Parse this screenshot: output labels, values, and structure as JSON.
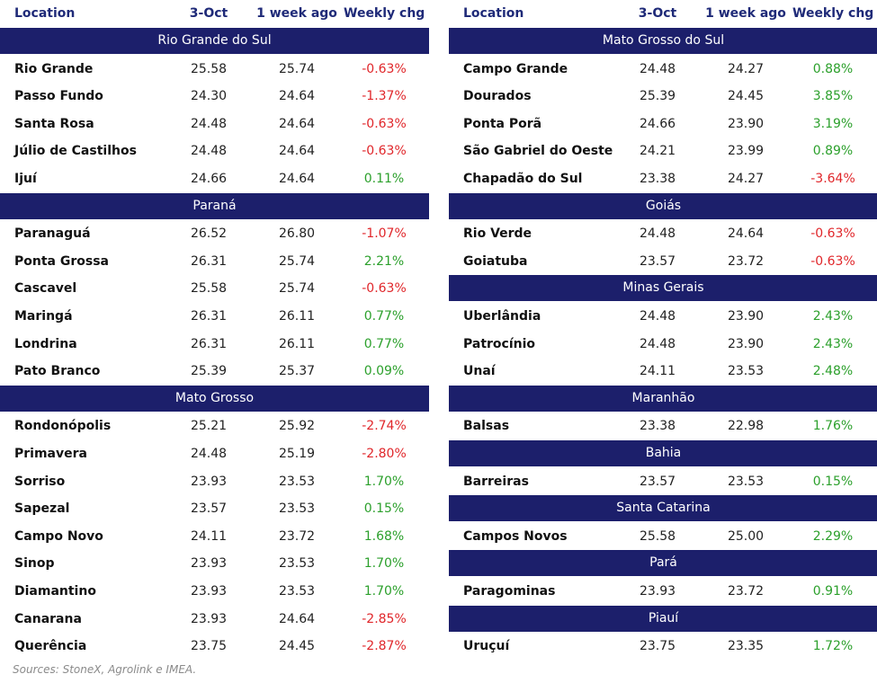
{
  "tables": [
    {
      "columns": [
        "Location",
        "3-Oct",
        "1 week ago",
        "Weekly chg"
      ],
      "groups": [
        {
          "name": "Rio Grande do Sul",
          "rows": [
            [
              "Rio Grande",
              "25.58",
              "25.74",
              "-0.63%"
            ],
            [
              "Passo Fundo",
              "24.30",
              "24.64",
              "-1.37%"
            ],
            [
              "Santa Rosa",
              "24.48",
              "24.64",
              "-0.63%"
            ],
            [
              "Júlio de Castilhos",
              "24.48",
              "24.64",
              "-0.63%"
            ],
            [
              "Ijuí",
              "24.66",
              "24.64",
              "0.11%"
            ]
          ]
        },
        {
          "name": "Paraná",
          "rows": [
            [
              "Paranaguá",
              "26.52",
              "26.80",
              "-1.07%"
            ],
            [
              "Ponta Grossa",
              "26.31",
              "25.74",
              "2.21%"
            ],
            [
              "Cascavel",
              "25.58",
              "25.74",
              "-0.63%"
            ],
            [
              "Maringá",
              "26.31",
              "26.11",
              "0.77%"
            ],
            [
              "Londrina",
              "26.31",
              "26.11",
              "0.77%"
            ],
            [
              "Pato Branco",
              "25.39",
              "25.37",
              "0.09%"
            ]
          ]
        },
        {
          "name": "Mato Grosso",
          "rows": [
            [
              "Rondonópolis",
              "25.21",
              "25.92",
              "-2.74%"
            ],
            [
              "Primavera",
              "24.48",
              "25.19",
              "-2.80%"
            ],
            [
              "Sorriso",
              "23.93",
              "23.53",
              "1.70%"
            ],
            [
              "Sapezal",
              "23.57",
              "23.53",
              "0.15%"
            ],
            [
              "Campo Novo",
              "24.11",
              "23.72",
              "1.68%"
            ],
            [
              "Sinop",
              "23.93",
              "23.53",
              "1.70%"
            ],
            [
              "Diamantino",
              "23.93",
              "23.53",
              "1.70%"
            ],
            [
              "Canarana",
              "23.93",
              "24.64",
              "-2.85%"
            ],
            [
              "Querência",
              "23.75",
              "24.45",
              "-2.87%"
            ]
          ]
        }
      ]
    },
    {
      "columns": [
        "Location",
        "3-Oct",
        "1 week ago",
        "Weekly chg"
      ],
      "groups": [
        {
          "name": "Mato Grosso do Sul",
          "rows": [
            [
              "Campo Grande",
              "24.48",
              "24.27",
              "0.88%"
            ],
            [
              "Dourados",
              "25.39",
              "24.45",
              "3.85%"
            ],
            [
              "Ponta Porã",
              "24.66",
              "23.90",
              "3.19%"
            ],
            [
              "São Gabriel do Oeste",
              "24.21",
              "23.99",
              "0.89%"
            ],
            [
              "Chapadão do Sul",
              "23.38",
              "24.27",
              "-3.64%"
            ]
          ]
        },
        {
          "name": "Goiás",
          "rows": [
            [
              "Rio Verde",
              "24.48",
              "24.64",
              "-0.63%"
            ],
            [
              "Goiatuba",
              "23.57",
              "23.72",
              "-0.63%"
            ]
          ]
        },
        {
          "name": "Minas Gerais",
          "rows": [
            [
              "Uberlândia",
              "24.48",
              "23.90",
              "2.43%"
            ],
            [
              "Patrocínio",
              "24.48",
              "23.90",
              "2.43%"
            ],
            [
              "Unaí",
              "24.11",
              "23.53",
              "2.48%"
            ]
          ]
        },
        {
          "name": "Maranhão",
          "rows": [
            [
              "Balsas",
              "23.38",
              "22.98",
              "1.76%"
            ]
          ]
        },
        {
          "name": "Bahia",
          "rows": [
            [
              "Barreiras",
              "23.57",
              "23.53",
              "0.15%"
            ]
          ]
        },
        {
          "name": "Santa Catarina",
          "rows": [
            [
              "Campos Novos",
              "25.58",
              "25.00",
              "2.29%"
            ]
          ]
        },
        {
          "name": "Pará",
          "rows": [
            [
              "Paragominas",
              "23.93",
              "23.72",
              "0.91%"
            ]
          ]
        },
        {
          "name": "Piauí",
          "rows": [
            [
              "Uruçuí",
              "23.75",
              "23.35",
              "1.72%"
            ]
          ]
        }
      ]
    }
  ],
  "source": "Sources: StoneX, Agrolink e IMEA."
}
